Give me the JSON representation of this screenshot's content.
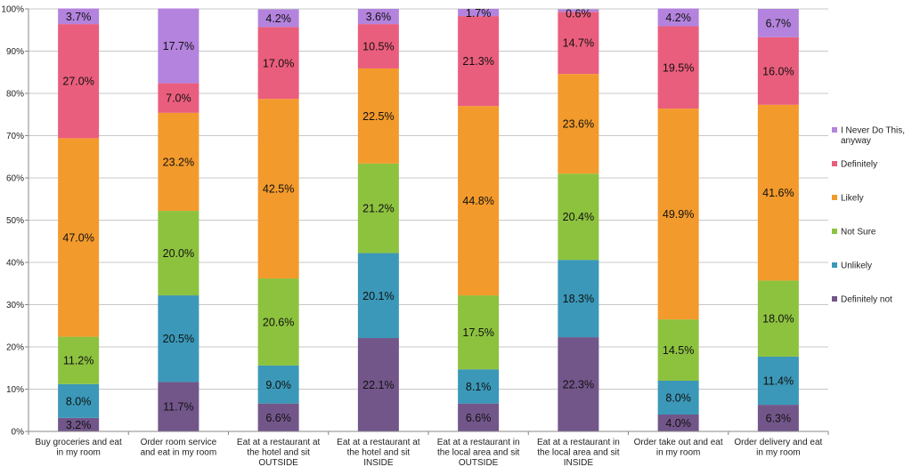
{
  "chart_data": {
    "type": "bar",
    "stacked": true,
    "categories": [
      [
        "Buy groceries and eat",
        "in my room"
      ],
      [
        "Order room service",
        "and eat in my room"
      ],
      [
        "Eat at a restaurant at",
        "the hotel and sit",
        "OUTSIDE"
      ],
      [
        "Eat at a restaurant at",
        "the hotel and sit",
        "INSIDE"
      ],
      [
        "Eat at a restaurant in",
        "the local area and sit",
        "OUTSIDE"
      ],
      [
        "Eat at a restaurant in",
        "the local area and sit",
        "INSIDE"
      ],
      [
        "Order take out and eat",
        "in my room"
      ],
      [
        "Order delivery and eat",
        "in my room"
      ]
    ],
    "series": [
      {
        "name": "Definitely not",
        "color": "#72568a",
        "values": [
          3.2,
          11.7,
          6.6,
          22.1,
          6.6,
          22.3,
          4.0,
          6.3
        ],
        "labels": [
          "3.2%",
          "11.7%",
          "6.6%",
          "22.1%",
          "6.6%",
          "22.3%",
          "4.0%",
          "6.3%"
        ]
      },
      {
        "name": "Unlikely",
        "color": "#3b98b8",
        "values": [
          8.0,
          20.5,
          9.0,
          20.1,
          8.1,
          18.3,
          8.0,
          11.4
        ],
        "labels": [
          "8.0%",
          "20.5%",
          "9.0%",
          "20.1%",
          "8.1%",
          "18.3%",
          "8.0%",
          "11.4%"
        ]
      },
      {
        "name": "Not Sure",
        "color": "#8dc23f",
        "values": [
          11.2,
          20.0,
          20.6,
          21.2,
          17.5,
          20.4,
          14.5,
          18.0
        ],
        "labels": [
          "11.2%",
          "20.0%",
          "20.6%",
          "21.2%",
          "17.5%",
          "20.4%",
          "14.5%",
          "18.0%"
        ]
      },
      {
        "name": "Likely",
        "color": "#f39a2c",
        "values": [
          47.0,
          23.2,
          42.5,
          22.5,
          44.8,
          23.6,
          49.9,
          41.6
        ],
        "labels": [
          "47.0%",
          "23.2%",
          "42.5%",
          "22.5%",
          "44.8%",
          "23.6%",
          "49.9%",
          "41.6%"
        ]
      },
      {
        "name": "Definitely",
        "color": "#ea5e7d",
        "values": [
          27.0,
          7.0,
          17.0,
          10.5,
          21.3,
          14.7,
          19.5,
          16.0
        ],
        "labels": [
          "27.0%",
          "7.0%",
          "17.0%",
          "10.5%",
          "21.3%",
          "14.7%",
          "19.5%",
          "16.0%"
        ]
      },
      {
        "name": [
          "I Never Do This,",
          "anyway"
        ],
        "color": "#b383dd",
        "values": [
          3.7,
          17.7,
          4.2,
          3.6,
          1.7,
          0.6,
          4.2,
          6.7
        ],
        "labels": [
          "3.7%",
          "17.7%",
          "4.2%",
          "3.6%",
          "1.7%",
          "0.6%",
          "4.2%",
          "6.7%"
        ]
      }
    ],
    "yticks": [
      "0%",
      "10%",
      "20%",
      "30%",
      "40%",
      "50%",
      "60%",
      "70%",
      "80%",
      "90%",
      "100%"
    ],
    "ylim": [
      0,
      100
    ],
    "grid": true,
    "legend": "right"
  }
}
